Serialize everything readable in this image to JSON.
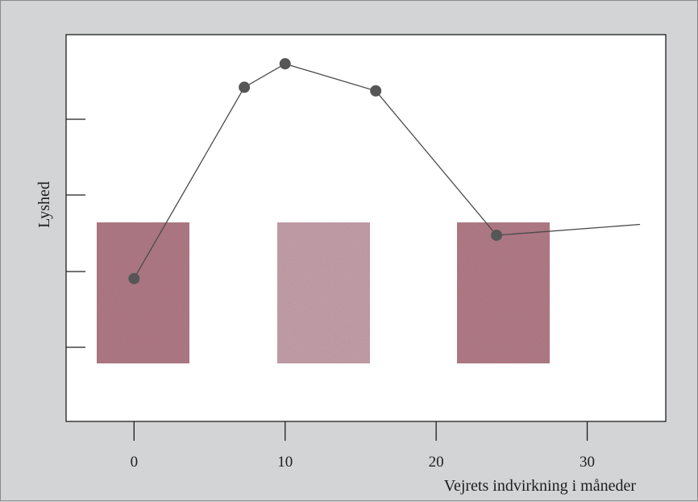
{
  "chart_data": {
    "type": "line",
    "xlabel": "Vejrets indvirkning i måneder",
    "ylabel": "Lyshed",
    "x_ticks": [
      0,
      10,
      20,
      30
    ],
    "xlim": [
      -4.5,
      35.2
    ],
    "ylim": [
      0,
      10
    ],
    "y_tick_count": 4,
    "series": [
      {
        "x": [
          0,
          7.3,
          10,
          16,
          24,
          33.5
        ],
        "y": [
          3.6,
          8.9,
          9.55,
          8.8,
          4.8,
          5.1
        ],
        "markers": [
          true,
          true,
          true,
          true,
          true,
          false
        ]
      }
    ],
    "swatches": [
      {
        "label": "",
        "color": "#b07a86"
      },
      {
        "label": "",
        "color": "#c4a0aa"
      },
      {
        "label": "",
        "color": "#b27c88"
      }
    ],
    "colors": {
      "background": "#d3d4d5",
      "plot_background": "#ffffff",
      "line": "#4a4a4a",
      "marker": "#565656"
    }
  }
}
